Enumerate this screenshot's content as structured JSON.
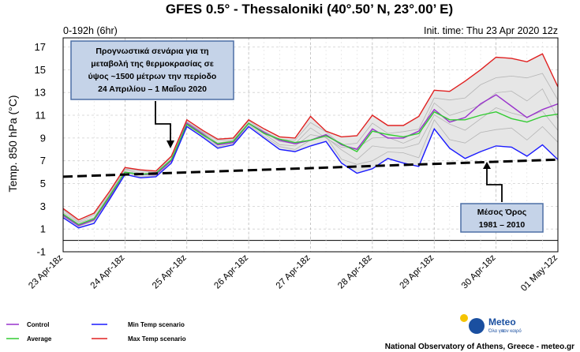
{
  "chart_data": {
    "type": "line",
    "title": "GFES 0.5° - Thessaloniki (40°.50’ N, 23°.00’ E)",
    "subtitle_left": "0-192h (6hr)",
    "subtitle_right": "Init. time: Thu 23 Apr 2020 12z",
    "ylabel": "Temp. 850 hPa (°C)",
    "xlabel": "",
    "ylim": [
      -1,
      17.8
    ],
    "yticks": [
      -1,
      1,
      3,
      5,
      7,
      9,
      11,
      13,
      15,
      17
    ],
    "x": [
      0,
      1,
      2,
      3,
      4,
      5,
      6,
      7,
      8,
      9,
      10,
      11,
      12,
      13,
      14,
      15,
      16,
      17,
      18,
      19,
      20,
      21,
      22,
      23,
      24,
      25,
      26,
      27,
      28,
      29,
      30,
      31,
      32
    ],
    "xticks": [
      {
        "x": 0,
        "label": "23 Apr-18z"
      },
      {
        "x": 4,
        "label": "24 Apr-18z"
      },
      {
        "x": 8,
        "label": "25 Apr-18z"
      },
      {
        "x": 12,
        "label": "26 Apr-18z"
      },
      {
        "x": 16,
        "label": "27 Apr-18z"
      },
      {
        "x": 20,
        "label": "28 Apr-18z"
      },
      {
        "x": 24,
        "label": "29 Apr-18z"
      },
      {
        "x": 28,
        "label": "30 Apr-18z"
      },
      {
        "x": 32,
        "label": "01 May-12z"
      }
    ],
    "series": [
      {
        "name": "Control",
        "color": "#9933cc",
        "values": [
          2.2,
          1.3,
          1.8,
          3.8,
          6.0,
          5.8,
          5.8,
          7.0,
          10.3,
          9.4,
          8.4,
          8.6,
          10.3,
          9.5,
          8.8,
          8.5,
          8.8,
          9.3,
          8.4,
          8.0,
          9.8,
          9.0,
          9.0,
          9.6,
          11.5,
          10.4,
          10.8,
          12.0,
          12.8,
          11.8,
          10.8,
          11.5,
          12.0
        ]
      },
      {
        "name": "Average",
        "color": "#33cc33",
        "values": [
          2.3,
          1.4,
          1.9,
          3.9,
          6.0,
          5.8,
          5.9,
          7.1,
          10.2,
          9.3,
          8.5,
          8.7,
          10.3,
          9.4,
          8.9,
          8.6,
          8.8,
          9.2,
          8.5,
          7.8,
          9.6,
          9.3,
          9.1,
          9.4,
          11.3,
          10.6,
          10.6,
          11.0,
          11.3,
          10.7,
          10.4,
          10.9,
          11.1
        ]
      },
      {
        "name": "Min Temp scenario",
        "color": "#1a1aff",
        "values": [
          2.0,
          1.1,
          1.5,
          3.6,
          5.8,
          5.5,
          5.6,
          6.8,
          10.0,
          9.1,
          8.1,
          8.4,
          10.0,
          9.0,
          8.0,
          7.8,
          8.3,
          8.7,
          6.8,
          5.9,
          6.3,
          7.2,
          6.8,
          6.5,
          9.8,
          8.1,
          7.2,
          7.8,
          8.3,
          8.2,
          7.4,
          8.4,
          7.1
        ]
      },
      {
        "name": "Max Temp scenario",
        "color": "#e02020",
        "values": [
          2.8,
          1.8,
          2.4,
          4.3,
          6.4,
          6.2,
          6.1,
          7.4,
          10.6,
          9.7,
          8.9,
          9.0,
          10.6,
          9.8,
          9.1,
          9.0,
          10.9,
          9.6,
          9.1,
          9.2,
          11.0,
          10.1,
          10.1,
          10.9,
          13.2,
          13.1,
          14.0,
          15.0,
          16.1,
          16.0,
          15.7,
          16.4,
          13.5
        ]
      }
    ],
    "ensemble_band": {
      "lower": [
        2.0,
        1.1,
        1.5,
        3.6,
        5.8,
        5.5,
        5.6,
        6.8,
        10.0,
        9.1,
        8.1,
        8.4,
        10.0,
        9.0,
        8.0,
        7.8,
        8.3,
        8.7,
        6.8,
        5.9,
        6.3,
        7.2,
        6.8,
        6.5,
        9.8,
        8.1,
        7.2,
        7.8,
        8.3,
        8.2,
        7.4,
        8.4,
        7.1
      ],
      "upper": [
        2.8,
        1.8,
        2.4,
        4.3,
        6.4,
        6.2,
        6.1,
        7.4,
        10.6,
        9.7,
        8.9,
        9.0,
        10.6,
        9.8,
        9.1,
        9.0,
        10.9,
        9.6,
        9.1,
        9.2,
        11.0,
        10.1,
        10.1,
        10.9,
        13.2,
        13.1,
        14.0,
        15.0,
        16.1,
        16.0,
        15.7,
        16.4,
        13.5
      ],
      "fill_color": "#e6e6e6",
      "member_color": "#b5b5b5"
    },
    "climatology_line": {
      "x": [
        0,
        32
      ],
      "values": [
        5.6,
        7.1
      ],
      "color": "#000000",
      "style": "dashed"
    },
    "zero_line": 0,
    "grid": true,
    "legend_position": "bottom-left"
  },
  "annotations": {
    "forecast_box": [
      "Προγνωστικά σενάρια για τη",
      "μεταβολή της θερμοκρασίας σε",
      "ύψος ~1500 μέτρων την περίοδο",
      "24 Απριλίου – 1 Μαΐου 2020"
    ],
    "climate_box": [
      "Μέσος Όρος",
      "1981 – 2010"
    ],
    "box_fill": "#c5d3e8",
    "box_border": "#4d6fa5"
  },
  "legend": [
    {
      "label": "Control",
      "color": "#9933cc"
    },
    {
      "label": "Average",
      "color": "#33cc33"
    },
    {
      "label": "Min Temp scenario",
      "color": "#1a1aff"
    },
    {
      "label": "Max Temp scenario",
      "color": "#e02020"
    }
  ],
  "logo": {
    "word": "Meteo",
    "tagline_1": "Όλα για",
    "tagline_2": "τον καιρό",
    "icon": "sun-logo-icon"
  },
  "footer": {
    "credit": "National Observatory of Athens, Greece - meteo.gr"
  }
}
